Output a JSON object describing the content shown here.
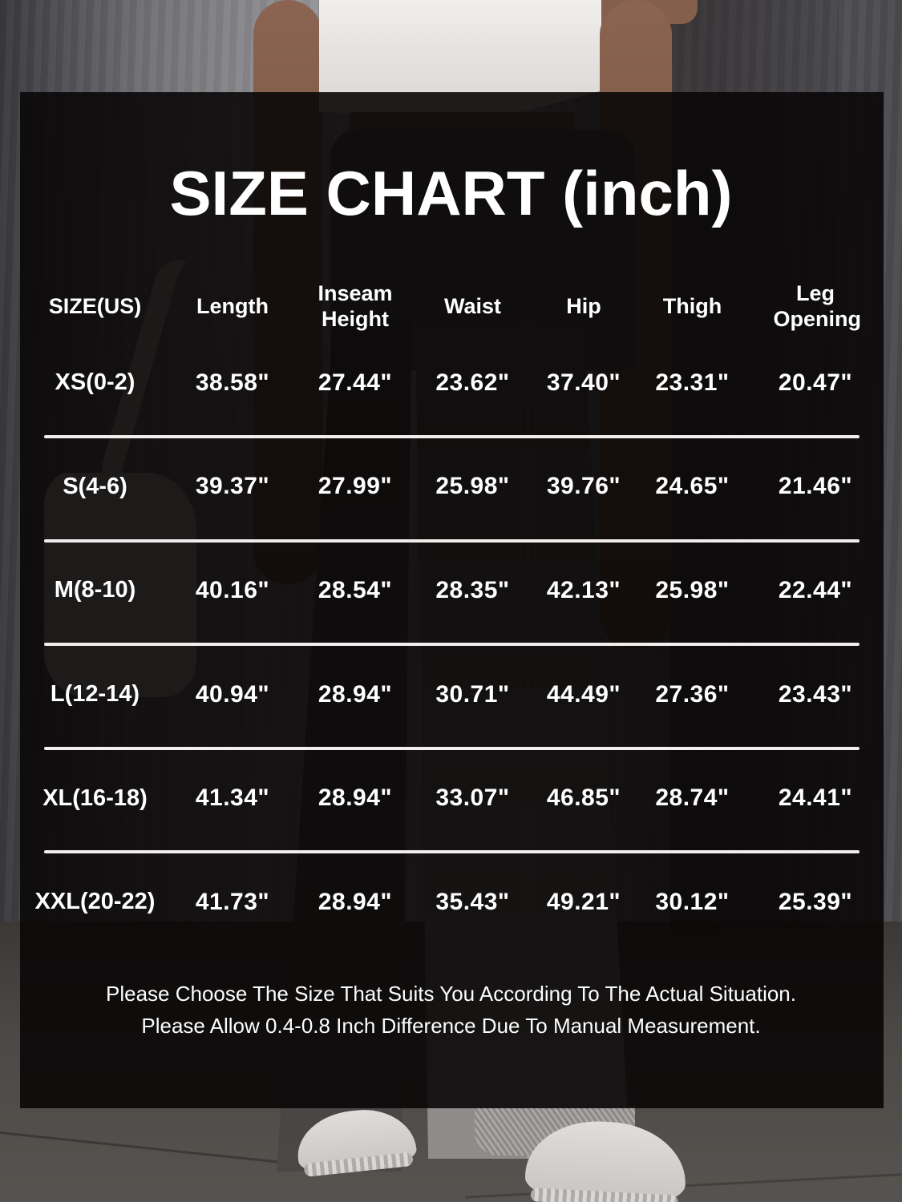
{
  "title": "SIZE CHART (inch)",
  "chart_data": {
    "type": "table",
    "title": "SIZE CHART (inch)",
    "columns": [
      "SIZE(US)",
      "Length",
      "Inseam Height",
      "Waist",
      "Hip",
      "Thigh",
      "Leg Opening"
    ],
    "rows": [
      {
        "label": "XS(0-2)",
        "values": [
          "38.58\"",
          "27.44\"",
          "23.62\"",
          "37.40\"",
          "23.31\"",
          "20.47\""
        ]
      },
      {
        "label": "S(4-6)",
        "values": [
          "39.37\"",
          "27.99\"",
          "25.98\"",
          "39.76\"",
          "24.65\"",
          "21.46\""
        ]
      },
      {
        "label": "M(8-10)",
        "values": [
          "40.16\"",
          "28.54\"",
          "28.35\"",
          "42.13\"",
          "25.98\"",
          "22.44\""
        ]
      },
      {
        "label": "L(12-14)",
        "values": [
          "40.94\"",
          "28.94\"",
          "30.71\"",
          "44.49\"",
          "27.36\"",
          "23.43\""
        ]
      },
      {
        "label": "XL(16-18)",
        "values": [
          "41.34\"",
          "28.94\"",
          "33.07\"",
          "46.85\"",
          "28.74\"",
          "24.41\""
        ]
      },
      {
        "label": "XXL(20-22)",
        "values": [
          "41.73\"",
          "28.94\"",
          "35.43\"",
          "49.21\"",
          "30.12\"",
          "25.39\""
        ]
      }
    ]
  },
  "footer": {
    "line1": "Please Choose The Size That Suits You According To The Actual Situation.",
    "line2": "Please Allow 0.4-0.8 Inch Difference Due To Manual Measurement."
  },
  "colors": {
    "text": "#ffffff",
    "divider": "#f0efee",
    "panel_overlay": "#0b0909",
    "wall": "#8b8b8f",
    "floor": "#4c4845"
  }
}
